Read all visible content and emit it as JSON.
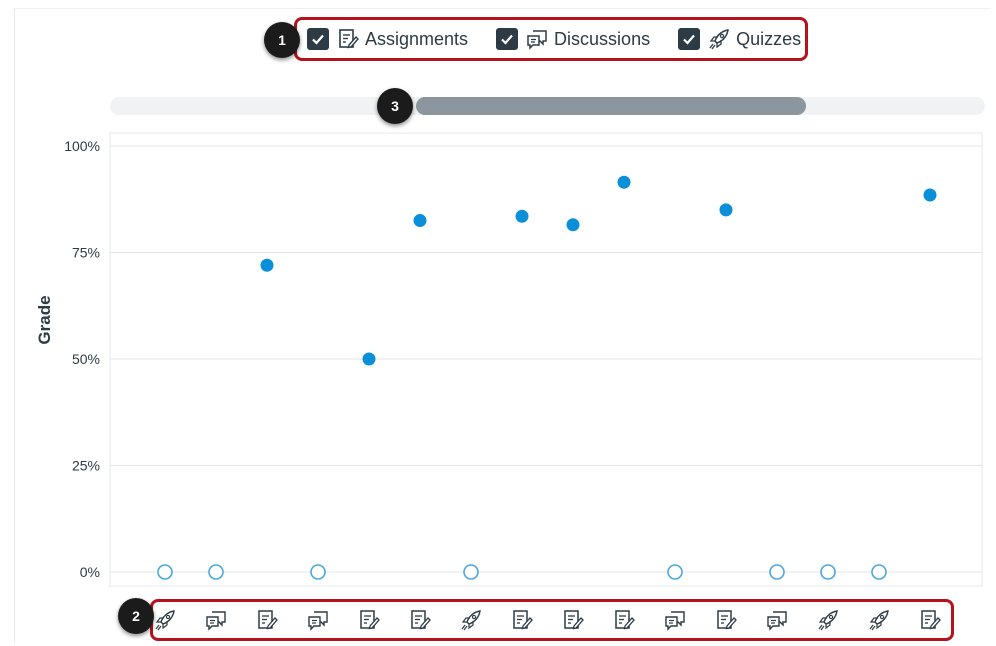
{
  "filters": [
    {
      "label": "Assignments",
      "icon": "assignment-icon",
      "checked": true
    },
    {
      "label": "Discussions",
      "icon": "discussion-icon",
      "checked": true
    },
    {
      "label": "Quizzes",
      "icon": "quiz-icon",
      "checked": true
    }
  ],
  "badges": {
    "filters": "1",
    "xaxis": "2",
    "scroll": "3"
  },
  "colors": {
    "filled": "#0b8fd8",
    "hollow_stroke": "#4aa8e0",
    "grid": "#e2e5e8",
    "badge_border": "#b5121b"
  },
  "scroll": {
    "start_fraction": 0.35,
    "end_fraction": 0.795
  },
  "chart_data": {
    "type": "scatter",
    "ylabel": "Grade",
    "ylim": [
      0,
      100
    ],
    "yticks": [
      "0%",
      "25%",
      "50%",
      "75%",
      "100%"
    ],
    "yticks_values": [
      0,
      25,
      50,
      75,
      100
    ],
    "grid": true,
    "points": [
      {
        "type": "quiz-icon",
        "value": 0,
        "submitted": false
      },
      {
        "type": "discussion-icon",
        "value": 0,
        "submitted": false
      },
      {
        "type": "assignment-icon",
        "value": 72,
        "submitted": true
      },
      {
        "type": "discussion-icon",
        "value": 0,
        "submitted": false
      },
      {
        "type": "assignment-icon",
        "value": 50,
        "submitted": true
      },
      {
        "type": "assignment-icon",
        "value": 82.5,
        "submitted": true
      },
      {
        "type": "quiz-icon",
        "value": 0,
        "submitted": false
      },
      {
        "type": "assignment-icon",
        "value": 83.5,
        "submitted": true
      },
      {
        "type": "assignment-icon",
        "value": 81.5,
        "submitted": true
      },
      {
        "type": "assignment-icon",
        "value": 91.5,
        "submitted": true
      },
      {
        "type": "discussion-icon",
        "value": 0,
        "submitted": false
      },
      {
        "type": "assignment-icon",
        "value": 85,
        "submitted": true
      },
      {
        "type": "discussion-icon",
        "value": 0,
        "submitted": false
      },
      {
        "type": "quiz-icon",
        "value": 0,
        "submitted": false
      },
      {
        "type": "quiz-icon",
        "value": 0,
        "submitted": false
      },
      {
        "type": "assignment-icon",
        "value": 88.5,
        "submitted": true
      }
    ]
  }
}
